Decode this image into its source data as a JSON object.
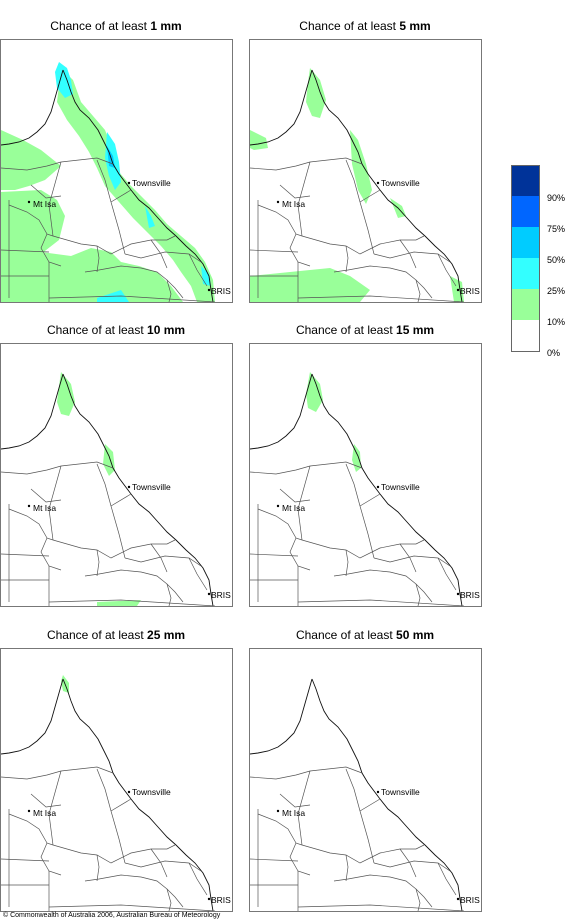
{
  "panels": [
    {
      "title_prefix": "Chance of at least ",
      "threshold": "1 mm"
    },
    {
      "title_prefix": "Chance of at least ",
      "threshold": "5 mm"
    },
    {
      "title_prefix": "Chance of at least ",
      "threshold": "10 mm"
    },
    {
      "title_prefix": "Chance of at least ",
      "threshold": "15 mm"
    },
    {
      "title_prefix": "Chance of at least ",
      "threshold": "25 mm"
    },
    {
      "title_prefix": "Chance of at least ",
      "threshold": "50 mm"
    }
  ],
  "map_labels": {
    "townsville": "Townsville",
    "mt_isa": "Mt Isa",
    "bris": "BRIS"
  },
  "legend": {
    "labels": [
      "90%",
      "75%",
      "50%",
      "25%",
      "10%",
      "0%"
    ],
    "colors": [
      "#003399",
      "#0066ff",
      "#00ccff",
      "#33ffff",
      "#99ff99",
      "#ffffff"
    ]
  },
  "footer": "© Commonwealth of Australia 2006, Australian Bureau of Meteorology"
}
